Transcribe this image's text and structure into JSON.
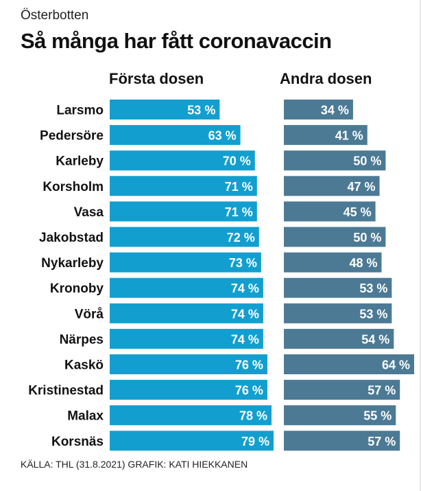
{
  "region": "Österbotten",
  "title": "Så många har fått coronavaccin",
  "source": "KÄLLA: THL (31.8.2021) GRAFIK: KATI HIEKKANEN",
  "colors": {
    "first": "#129fcf",
    "second": "#4c7a95"
  },
  "chart_data": {
    "type": "bar",
    "orientation": "horizontal",
    "unit": "%",
    "categories": [
      "Larsmo",
      "Pedersöre",
      "Karleby",
      "Korsholm",
      "Vasa",
      "Jakobstad",
      "Nykarleby",
      "Kronoby",
      "Vörå",
      "Närpes",
      "Kaskö",
      "Kristinestad",
      "Malax",
      "Korsnäs"
    ],
    "series": [
      {
        "name": "Första dosen",
        "values": [
          53,
          63,
          70,
          71,
          71,
          72,
          73,
          74,
          74,
          74,
          76,
          76,
          78,
          79
        ]
      },
      {
        "name": "Andra dosen",
        "values": [
          34,
          41,
          50,
          47,
          45,
          50,
          48,
          53,
          53,
          54,
          64,
          57,
          55,
          57
        ]
      }
    ],
    "labels": {
      "first": [
        "53 %",
        "63 %",
        "70 %",
        "71 %",
        "71 %",
        "72 %",
        "73 %",
        "74 %",
        "74 %",
        "74 %",
        "76 %",
        "76 %",
        "78 %",
        "79 %"
      ],
      "second": [
        "34 %",
        "41 %",
        "50 %",
        "47 %",
        "45 %",
        "50 %",
        "48 %",
        "53 %",
        "53 %",
        "54 %",
        "64 %",
        "57 %",
        "55 %",
        "57 %"
      ]
    }
  }
}
